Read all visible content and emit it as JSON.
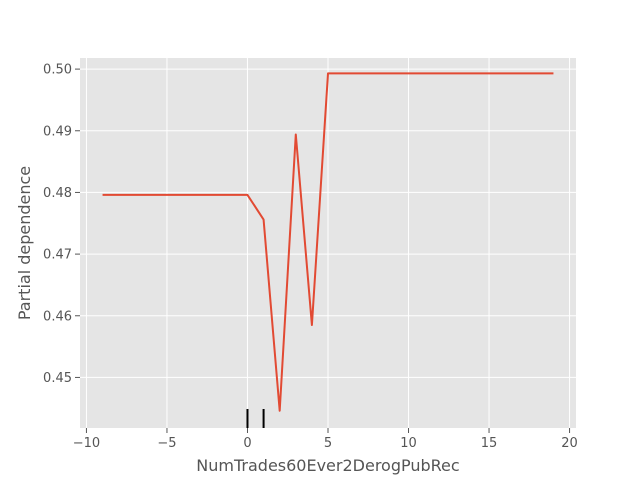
{
  "chart_data": {
    "type": "line",
    "title": "",
    "xlabel": "NumTrades60Ever2DerogPubRec",
    "ylabel": "Partial dependence",
    "xlim": [
      -10.4,
      20.4
    ],
    "ylim": [
      0.4418,
      0.5018
    ],
    "x_ticks": [
      -10,
      -5,
      0,
      5,
      10,
      15,
      20
    ],
    "y_ticks": [
      0.45,
      0.46,
      0.47,
      0.48,
      0.49,
      0.5
    ],
    "x_tick_labels": [
      "−10",
      "−5",
      "0",
      "5",
      "10",
      "15",
      "20"
    ],
    "y_tick_labels": [
      "0.45",
      "0.46",
      "0.47",
      "0.48",
      "0.49",
      "0.50"
    ],
    "grid": true,
    "background_color": "#e5e5e5",
    "grid_color": "#ffffff",
    "line_color": "#e24a33",
    "series": [
      {
        "x": [
          -9,
          0,
          1,
          2,
          3,
          4,
          5,
          19
        ],
        "y": [
          0.4796,
          0.4796,
          0.4756,
          0.4446,
          0.4894,
          0.4585,
          0.4993,
          0.4993
        ]
      }
    ],
    "rug_x": [
      0,
      1
    ]
  }
}
